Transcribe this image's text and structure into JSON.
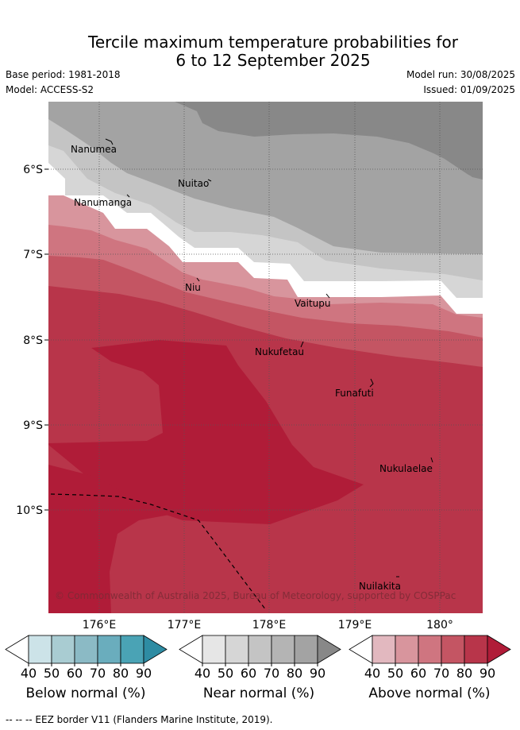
{
  "title": {
    "line1": "Tercile maximum temperature probabilities for",
    "line2": "6 to 12 September 2025"
  },
  "meta": {
    "base_period": "Base period: 1981-2018",
    "model": "Model: ACCESS-S2",
    "model_run": "Model run: 30/08/2025",
    "issued": "Issued: 01/09/2025"
  },
  "map": {
    "lat_labels": [
      "6°S",
      "7°S",
      "8°S",
      "9°S",
      "10°S"
    ],
    "lon_labels": [
      "176°E",
      "177°E",
      "178°E",
      "179°E",
      "180°"
    ],
    "places": [
      "Nanumea",
      "Nuitao",
      "Nanumanga",
      "Niu",
      "Vaitupu",
      "Nukufetau",
      "Funafuti",
      "Nukulaelae",
      "Nuilakita"
    ],
    "copyright": "© Commonwealth of Australia 2025, Bureau of Meteorology, supported by COSPPac"
  },
  "colorbars": [
    {
      "label": "Below normal (%)",
      "ticks": [
        "40",
        "50",
        "60",
        "70",
        "80",
        "90"
      ],
      "colors": [
        "#ffffff",
        "#cce3e8",
        "#a9ccd2",
        "#8bbac5",
        "#6aadbd",
        "#4aa3b5",
        "#2e8ca3"
      ]
    },
    {
      "label": "Near normal (%)",
      "ticks": [
        "40",
        "50",
        "60",
        "70",
        "80",
        "90"
      ],
      "colors": [
        "#ffffff",
        "#e6e6e6",
        "#d6d6d6",
        "#c4c4c4",
        "#b4b4b4",
        "#a3a3a3",
        "#888888"
      ]
    },
    {
      "label": "Above normal (%)",
      "ticks": [
        "40",
        "50",
        "60",
        "70",
        "80",
        "90"
      ],
      "colors": [
        "#ffffff",
        "#e2b8bf",
        "#d8959d",
        "#cf7580",
        "#c45563",
        "#b8354a",
        "#b01c38"
      ]
    }
  ],
  "footnote": "--  --  -- EEZ border V11 (Flanders Marine Institute, 2019)."
}
